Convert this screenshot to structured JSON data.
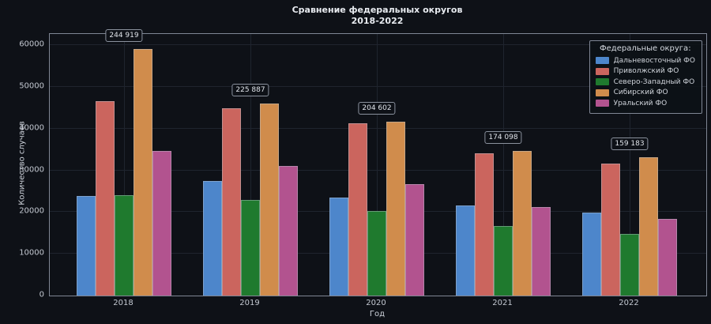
{
  "title": {
    "line1": "Сравнение федеральных округов",
    "line2": "2018-2022"
  },
  "axes": {
    "x_label": "Год",
    "y_label": "Количество случаев",
    "y_ticks": [
      0,
      10000,
      20000,
      30000,
      40000,
      50000,
      60000
    ]
  },
  "legend": {
    "title": "Федеральные округа:"
  },
  "colors": {
    "background": "#0e1117",
    "plot_border": "#7f8694",
    "grid": "#1f242e",
    "text": "#cdd2da",
    "annotation_border": "#8a919d"
  },
  "chart_data": {
    "type": "bar",
    "title": "Сравнение федеральных округов 2018-2022",
    "xlabel": "Год",
    "ylabel": "Количество случаев",
    "categories": [
      "2018",
      "2019",
      "2020",
      "2021",
      "2022"
    ],
    "series": [
      {
        "name": "Дальневосточный ФО",
        "color": "#4d86cb",
        "values": [
          23900,
          27400,
          23400,
          21600,
          19900
        ]
      },
      {
        "name": "Приволжский ФО",
        "color": "#cb655e",
        "values": [
          46500,
          44900,
          41200,
          34100,
          31600
        ]
      },
      {
        "name": "Северо-Западный ФО",
        "color": "#1f7a2e",
        "values": [
          24000,
          22900,
          20200,
          16600,
          14800
        ]
      },
      {
        "name": "Сибирский ФО",
        "color": "#d08c4c",
        "values": [
          59000,
          46000,
          41600,
          34600,
          33200
        ]
      },
      {
        "name": "Уральский ФО",
        "color": "#b2538f",
        "values": [
          34700,
          31000,
          26700,
          21200,
          18400
        ]
      }
    ],
    "annotations": [
      {
        "category": "2018",
        "label": "244 919"
      },
      {
        "category": "2019",
        "label": "225 887"
      },
      {
        "category": "2020",
        "label": "204 602"
      },
      {
        "category": "2021",
        "label": "174 098"
      },
      {
        "category": "2022",
        "label": "159 183"
      }
    ],
    "annotation_anchor_series": "Сибирский ФО",
    "ylim": [
      0,
      62650
    ],
    "y_tick_step": 10000,
    "grid": true,
    "legend_position": "top-right"
  }
}
